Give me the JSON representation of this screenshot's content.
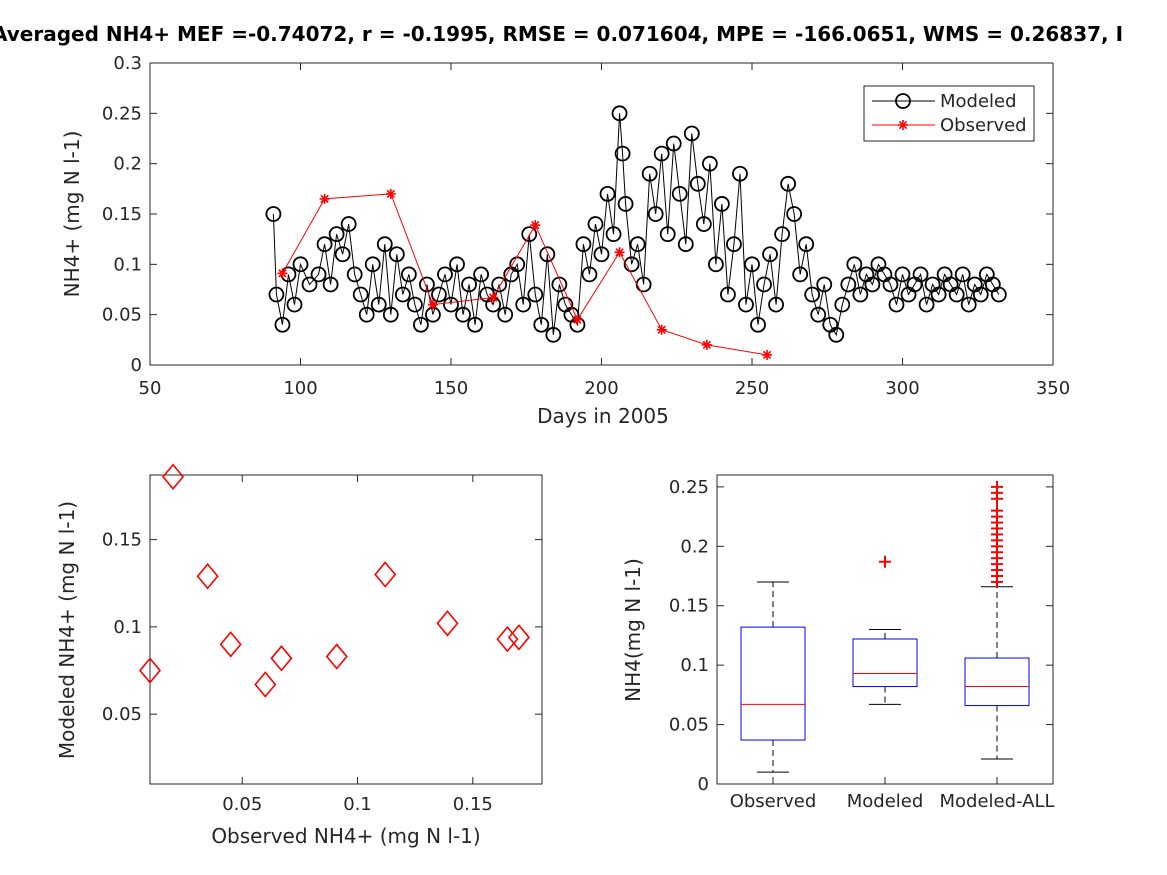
{
  "title": "Averaged NH4+  MEF =-0.74072, r = -0.1995, RMSE = 0.071604, MPE = -166.0651, WMS = 0.26837, I",
  "chart_data": [
    {
      "type": "line",
      "title": "Averaged NH4+  MEF =-0.74072, r = -0.1995, RMSE = 0.071604, MPE = -166.0651, WMS = 0.26837, I",
      "xlabel": "Days in 2005",
      "ylabel": "NH4+ (mg N l-1)",
      "xlim": [
        50,
        350
      ],
      "ylim": [
        0,
        0.3
      ],
      "xticks": [
        "50",
        "100",
        "150",
        "200",
        "250",
        "300",
        "350"
      ],
      "yticks": [
        "0",
        "0.05",
        "0.1",
        "0.15",
        "0.2",
        "0.25",
        "0.3"
      ],
      "legend": {
        "position": "top-right"
      },
      "series": [
        {
          "name": "Modeled",
          "color": "#000000",
          "marker": "circle",
          "x": [
            91,
            92,
            94,
            96,
            98,
            100,
            103,
            106,
            108,
            110,
            112,
            114,
            116,
            118,
            120,
            122,
            124,
            126,
            128,
            130,
            132,
            134,
            136,
            138,
            140,
            142,
            144,
            146,
            148,
            150,
            152,
            154,
            156,
            158,
            160,
            162,
            164,
            166,
            168,
            170,
            172,
            174,
            176,
            178,
            180,
            182,
            184,
            186,
            188,
            190,
            192,
            194,
            196,
            198,
            200,
            202,
            204,
            206,
            207,
            208,
            210,
            212,
            214,
            216,
            218,
            220,
            222,
            224,
            226,
            228,
            230,
            232,
            234,
            236,
            238,
            240,
            242,
            244,
            246,
            248,
            250,
            252,
            254,
            256,
            258,
            260,
            262,
            264,
            266,
            268,
            270,
            272,
            274,
            276,
            278,
            280,
            282,
            284,
            286,
            288,
            290,
            292,
            294,
            296,
            298,
            300,
            302,
            304,
            306,
            308,
            310,
            312,
            314,
            316,
            318,
            320,
            322,
            324,
            326,
            328,
            330,
            332
          ],
          "y": [
            0.15,
            0.07,
            0.04,
            0.09,
            0.06,
            0.1,
            0.08,
            0.09,
            0.12,
            0.08,
            0.13,
            0.11,
            0.14,
            0.09,
            0.07,
            0.05,
            0.1,
            0.06,
            0.12,
            0.05,
            0.11,
            0.07,
            0.09,
            0.06,
            0.04,
            0.08,
            0.05,
            0.07,
            0.09,
            0.06,
            0.1,
            0.05,
            0.08,
            0.04,
            0.09,
            0.07,
            0.06,
            0.08,
            0.05,
            0.09,
            0.1,
            0.06,
            0.13,
            0.07,
            0.04,
            0.11,
            0.03,
            0.08,
            0.06,
            0.05,
            0.04,
            0.12,
            0.09,
            0.14,
            0.11,
            0.17,
            0.13,
            0.25,
            0.21,
            0.16,
            0.1,
            0.12,
            0.08,
            0.19,
            0.15,
            0.21,
            0.13,
            0.22,
            0.17,
            0.12,
            0.23,
            0.18,
            0.14,
            0.2,
            0.1,
            0.16,
            0.07,
            0.12,
            0.19,
            0.06,
            0.1,
            0.04,
            0.08,
            0.11,
            0.06,
            0.13,
            0.18,
            0.15,
            0.09,
            0.12,
            0.07,
            0.05,
            0.08,
            0.04,
            0.03,
            0.06,
            0.08,
            0.1,
            0.07,
            0.09,
            0.08,
            0.1,
            0.09,
            0.08,
            0.06,
            0.09,
            0.07,
            0.08,
            0.09,
            0.06,
            0.08,
            0.07,
            0.09,
            0.08,
            0.07,
            0.09,
            0.06,
            0.08,
            0.07,
            0.09,
            0.08,
            0.07
          ]
        },
        {
          "name": "Observed",
          "color": "#ff0000",
          "marker": "asterisk",
          "x": [
            94,
            108,
            130,
            144,
            164,
            178,
            192,
            206,
            220,
            235,
            255
          ],
          "y": [
            0.091,
            0.165,
            0.17,
            0.06,
            0.067,
            0.139,
            0.045,
            0.112,
            0.035,
            0.02,
            0.01
          ]
        }
      ]
    },
    {
      "type": "scatter",
      "xlabel": "Observed NH4+ (mg N l-1)",
      "ylabel": "Modeled NH4+ (mg N l-1)",
      "xlim": [
        0.01,
        0.18
      ],
      "ylim": [
        0.01,
        0.187
      ],
      "xticks": [
        "0.05",
        "0.1",
        "0.15"
      ],
      "yticks": [
        "0.05",
        "0.1",
        "0.15"
      ],
      "series": [
        {
          "color": "#ff0000",
          "marker": "diamond",
          "x": [
            0.01,
            0.02,
            0.035,
            0.045,
            0.06,
            0.067,
            0.091,
            0.112,
            0.139,
            0.165,
            0.17
          ],
          "y": [
            0.075,
            0.186,
            0.129,
            0.09,
            0.067,
            0.082,
            0.083,
            0.13,
            0.102,
            0.093,
            0.094
          ]
        }
      ]
    },
    {
      "type": "box",
      "ylabel": "NH4(mg N l-1)",
      "ylim": [
        0,
        0.26
      ],
      "yticks": [
        "0",
        "0.05",
        "0.1",
        "0.15",
        "0.2",
        "0.25"
      ],
      "categories": [
        "Observed",
        "Modeled",
        "Modeled-ALL"
      ],
      "box_color": "#0000ff",
      "median_color": "#ff0000",
      "outlier_color": "#ff0000",
      "boxes": [
        {
          "whisker_low": 0.01,
          "q1": 0.037,
          "median": 0.067,
          "q3": 0.132,
          "whisker_high": 0.17,
          "outliers": []
        },
        {
          "whisker_low": 0.067,
          "q1": 0.082,
          "median": 0.093,
          "q3": 0.122,
          "whisker_high": 0.13,
          "outliers": [
            0.187
          ]
        },
        {
          "whisker_low": 0.021,
          "q1": 0.066,
          "median": 0.082,
          "q3": 0.106,
          "whisker_high": 0.166,
          "outliers": [
            0.17,
            0.175,
            0.18,
            0.185,
            0.19,
            0.195,
            0.2,
            0.205,
            0.21,
            0.215,
            0.22,
            0.225,
            0.23,
            0.24,
            0.245,
            0.25
          ]
        }
      ]
    }
  ]
}
